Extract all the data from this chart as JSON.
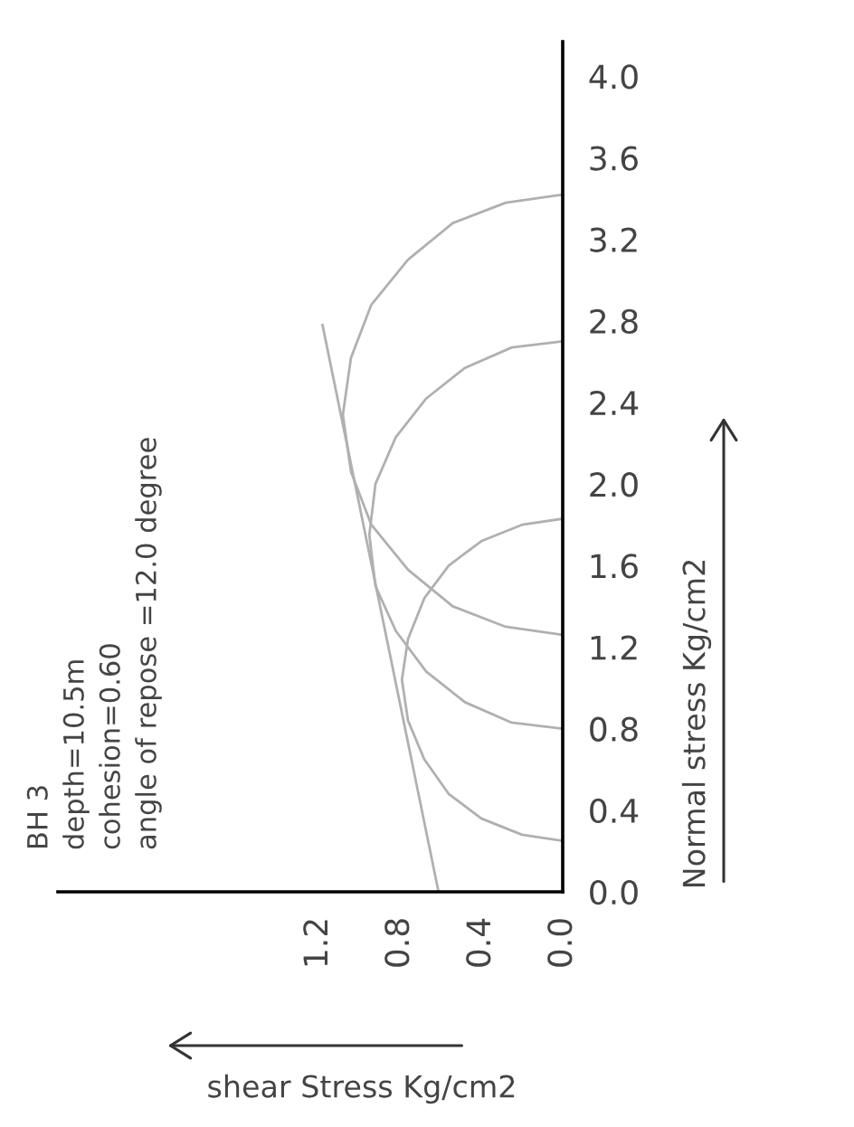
{
  "chart_data": {
    "type": "line",
    "xlabel": "shear Stress Kg/cm2",
    "ylabel": "Normal stress Kg/cm2",
    "annotations": [
      "BH 3",
      "depth=10.5m",
      "cohesion=0.60",
      "angle of repose =12.0 degree"
    ],
    "xlim": [
      2.48,
      0
    ],
    "ylim": [
      0,
      4.17
    ],
    "xticks": [
      {
        "value": 0,
        "label": "0.0"
      },
      0.4,
      0.8,
      1.2
    ],
    "yticks": [
      {
        "value": 0,
        "label": "0.0"
      },
      0.4,
      0.8,
      1.2,
      1.6,
      {
        "value": 2,
        "label": "2.0"
      },
      2.4,
      2.8,
      3.2,
      3.6,
      {
        "value": 4,
        "label": "4.0"
      }
    ],
    "grid": false,
    "legend": false,
    "marker": "none",
    "line_style": "solid",
    "series": [
      {
        "color": "#b0b0b0",
        "x": [
          0,
          0.2,
          0.4,
          0.56,
          0.68,
          0.76,
          0.79,
          0.76,
          0.68,
          0.56,
          0.4,
          0.2,
          0
        ],
        "values": [
          0.25,
          0.28,
          0.36,
          0.48,
          0.65,
          0.84,
          1.04,
          1.24,
          1.44,
          1.6,
          1.72,
          1.8,
          1.83
        ]
      },
      {
        "color": "#b0b0b0",
        "x": [
          0,
          0.25,
          0.48,
          0.67,
          0.82,
          0.92,
          0.95,
          0.92,
          0.82,
          0.67,
          0.48,
          0.25,
          0
        ],
        "values": [
          0.8,
          0.83,
          0.93,
          1.08,
          1.28,
          1.5,
          1.75,
          2.0,
          2.23,
          2.42,
          2.57,
          2.67,
          2.7
        ]
      },
      {
        "color": "#b0b0b0",
        "x": [
          0,
          0.28,
          0.54,
          0.76,
          0.94,
          1.04,
          1.08,
          1.04,
          0.94,
          0.76,
          0.54,
          0.28,
          0
        ],
        "values": [
          1.26,
          1.3,
          1.4,
          1.58,
          1.8,
          2.06,
          2.34,
          2.62,
          2.88,
          3.1,
          3.28,
          3.38,
          3.42
        ]
      },
      {
        "color": "#b0b0b0",
        "x": [
          0.61,
          1.18
        ],
        "values": [
          0,
          2.78
        ]
      }
    ]
  }
}
